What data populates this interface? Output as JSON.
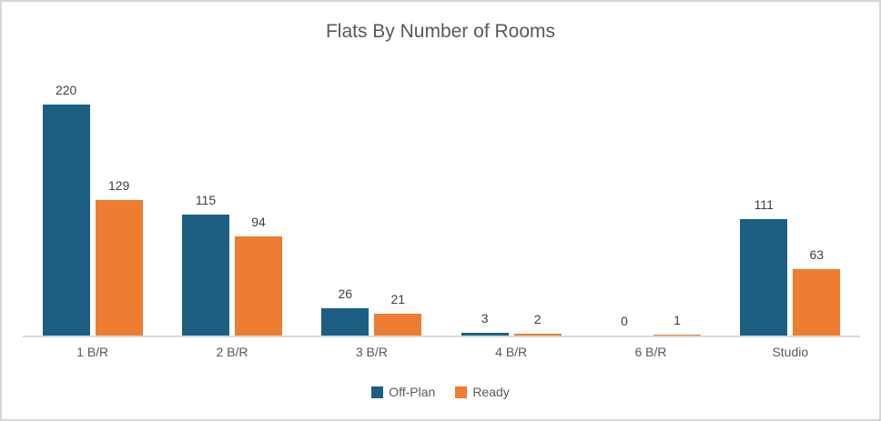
{
  "chart_data": {
    "type": "bar",
    "title": "Flats By Number of Rooms",
    "categories": [
      "1 B/R",
      "2 B/R",
      "3 B/R",
      "4 B/R",
      "6 B/R",
      "Studio"
    ],
    "series": [
      {
        "name": "Off-Plan",
        "color": "#1c5f82",
        "values": [
          220,
          115,
          26,
          3,
          0,
          111
        ]
      },
      {
        "name": "Ready",
        "color": "#ed7d31",
        "values": [
          129,
          94,
          21,
          2,
          1,
          63
        ]
      }
    ],
    "xlabel": "",
    "ylabel": "",
    "ylim": [
      0,
      250
    ],
    "grid": false,
    "y_axis_visible": false,
    "data_labels": true,
    "legend_position": "bottom"
  },
  "colors": {
    "frame_border": "#d6d6d6",
    "axis_line": "#d9d9d9",
    "title_text": "#595959",
    "data_label_text": "#404040",
    "category_text": "#595959",
    "legend_text": "#595959",
    "series_off_plan": "#1c5f82",
    "series_ready": "#ed7d31"
  }
}
